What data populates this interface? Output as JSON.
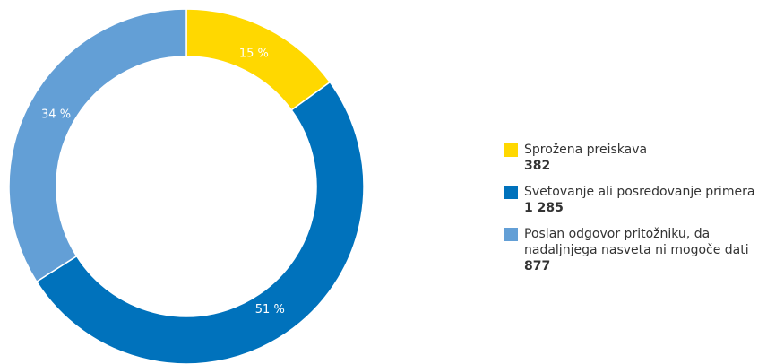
{
  "chart_data": {
    "type": "donut",
    "categories": [
      "Sprožena preiskava",
      "Svetovanje ali posredovanje primera",
      "Poslan odgovor pritožniku, da nadaljnjega nasveta ni mogoče dati"
    ],
    "values": [
      15,
      51,
      34
    ],
    "value_labels": [
      "15 %",
      "51 %",
      "34 %"
    ],
    "counts": [
      382,
      1285,
      877
    ],
    "count_labels": [
      "382",
      "1 285",
      "877"
    ],
    "colors": [
      "#ffd800",
      "#0072bc",
      "#639fd6"
    ],
    "legend": "right"
  }
}
